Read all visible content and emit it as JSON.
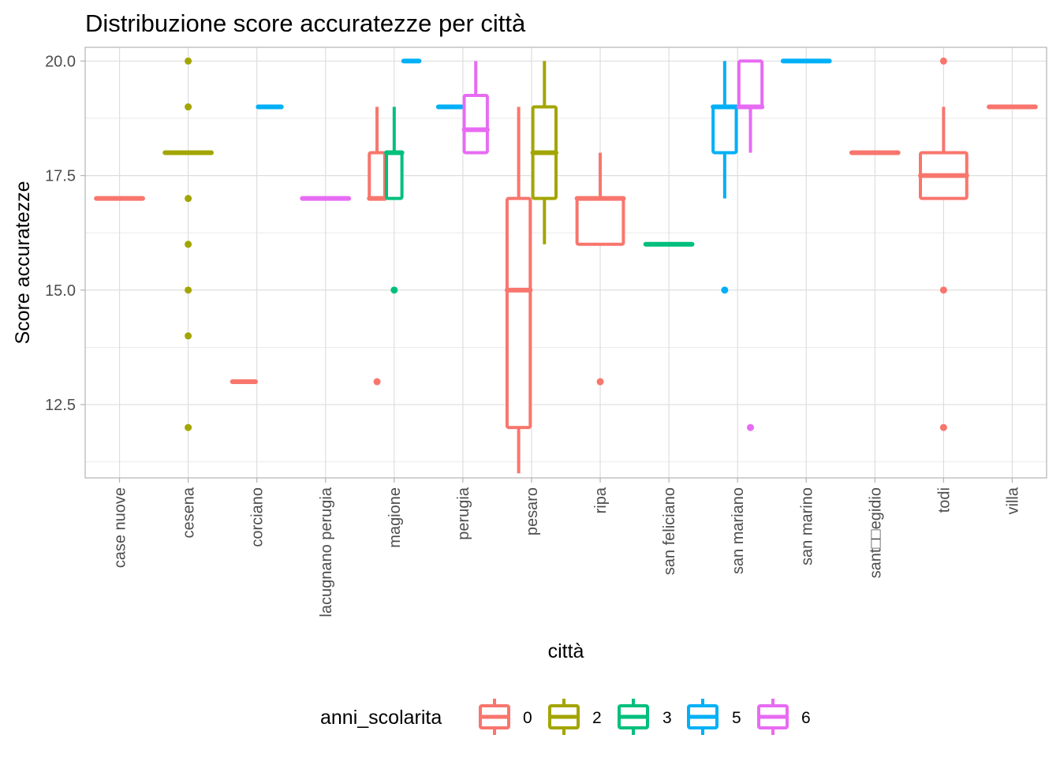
{
  "chart_data": {
    "type": "boxplot",
    "title": "Distribuzione score accuratezze per città",
    "xlabel": "città",
    "ylabel": "Score accuratezze",
    "ylim": [
      10.9,
      20.3
    ],
    "yticks": [
      12.5,
      15.0,
      17.5,
      20.0
    ],
    "ytick_labels": [
      "12.5",
      "15.0",
      "17.5",
      "20.0"
    ],
    "grid": true,
    "legend": {
      "title": "anni_scolarita",
      "position": "bottom",
      "items": [
        {
          "label": "0",
          "color": "#F8766D"
        },
        {
          "label": "2",
          "color": "#A3A500"
        },
        {
          "label": "3",
          "color": "#00BF7D"
        },
        {
          "label": "5",
          "color": "#00B0F6"
        },
        {
          "label": "6",
          "color": "#E76BF3"
        }
      ]
    },
    "categories": [
      "case nuove",
      "cesena",
      "corciano",
      "lacugnano perugia",
      "magione",
      "perugia",
      "pesaro",
      "ripa",
      "san feliciano",
      "san mariano",
      "san marino",
      "sant□□egidio",
      "todi",
      "villa"
    ],
    "boxes": [
      {
        "category": "case nuove",
        "group": "0",
        "groups_in_category": 1,
        "slot": 0,
        "q1": 17,
        "median": 17,
        "q3": 17,
        "whisker_low": 17,
        "whisker_high": 17,
        "outliers": []
      },
      {
        "category": "cesena",
        "group": "2",
        "groups_in_category": 1,
        "slot": 0,
        "q1": 18,
        "median": 18,
        "q3": 18,
        "whisker_low": 18,
        "whisker_high": 18,
        "outliers": [
          20,
          19,
          17,
          16,
          15,
          14,
          12
        ]
      },
      {
        "category": "corciano",
        "group": "0",
        "groups_in_category": 2,
        "slot": 0,
        "q1": 13,
        "median": 13,
        "q3": 13,
        "whisker_low": 13,
        "whisker_high": 13,
        "outliers": []
      },
      {
        "category": "corciano",
        "group": "5",
        "groups_in_category": 2,
        "slot": 1,
        "q1": 19,
        "median": 19,
        "q3": 19,
        "whisker_low": 19,
        "whisker_high": 19,
        "outliers": []
      },
      {
        "category": "lacugnano perugia",
        "group": "6",
        "groups_in_category": 1,
        "slot": 0,
        "q1": 17,
        "median": 17,
        "q3": 17,
        "whisker_low": 17,
        "whisker_high": 17,
        "outliers": []
      },
      {
        "category": "magione",
        "group": "0",
        "groups_in_category": 3,
        "slot": 0,
        "q1": 17,
        "median": 17,
        "q3": 18,
        "whisker_low": 17,
        "whisker_high": 19,
        "outliers": [
          13
        ]
      },
      {
        "category": "magione",
        "group": "3",
        "groups_in_category": 3,
        "slot": 1,
        "q1": 17,
        "median": 18,
        "q3": 18,
        "whisker_low": 17,
        "whisker_high": 19,
        "outliers": [
          15
        ]
      },
      {
        "category": "magione",
        "group": "5",
        "groups_in_category": 3,
        "slot": 2,
        "q1": 20,
        "median": 20,
        "q3": 20,
        "whisker_low": 20,
        "whisker_high": 20,
        "outliers": []
      },
      {
        "category": "perugia",
        "group": "5",
        "groups_in_category": 2,
        "slot": 0,
        "q1": 19,
        "median": 19,
        "q3": 19,
        "whisker_low": 19,
        "whisker_high": 19,
        "outliers": []
      },
      {
        "category": "perugia",
        "group": "6",
        "groups_in_category": 2,
        "slot": 1,
        "q1": 18,
        "median": 18.5,
        "q3": 19.25,
        "whisker_low": 18,
        "whisker_high": 20,
        "outliers": []
      },
      {
        "category": "pesaro",
        "group": "0",
        "groups_in_category": 2,
        "slot": 0,
        "q1": 12,
        "median": 15,
        "q3": 17,
        "whisker_low": 11,
        "whisker_high": 19,
        "outliers": []
      },
      {
        "category": "pesaro",
        "group": "2",
        "groups_in_category": 2,
        "slot": 1,
        "q1": 17,
        "median": 18,
        "q3": 19,
        "whisker_low": 16,
        "whisker_high": 20,
        "outliers": []
      },
      {
        "category": "ripa",
        "group": "0",
        "groups_in_category": 1,
        "slot": 0,
        "q1": 16,
        "median": 17,
        "q3": 17,
        "whisker_low": 16,
        "whisker_high": 18,
        "outliers": [
          13
        ]
      },
      {
        "category": "san feliciano",
        "group": "3",
        "groups_in_category": 1,
        "slot": 0,
        "q1": 16,
        "median": 16,
        "q3": 16,
        "whisker_low": 16,
        "whisker_high": 16,
        "outliers": []
      },
      {
        "category": "san mariano",
        "group": "5",
        "groups_in_category": 2,
        "slot": 0,
        "q1": 18,
        "median": 19,
        "q3": 19,
        "whisker_low": 17,
        "whisker_high": 20,
        "outliers": [
          15
        ]
      },
      {
        "category": "san mariano",
        "group": "6",
        "groups_in_category": 2,
        "slot": 1,
        "q1": 19,
        "median": 19,
        "q3": 20,
        "whisker_low": 18,
        "whisker_high": 20,
        "outliers": [
          12
        ]
      },
      {
        "category": "san marino",
        "group": "5",
        "groups_in_category": 1,
        "slot": 0,
        "q1": 20,
        "median": 20,
        "q3": 20,
        "whisker_low": 20,
        "whisker_high": 20,
        "outliers": []
      },
      {
        "category": "sant□□egidio",
        "group": "0",
        "groups_in_category": 1,
        "slot": 0,
        "q1": 18,
        "median": 18,
        "q3": 18,
        "whisker_low": 18,
        "whisker_high": 18,
        "outliers": []
      },
      {
        "category": "todi",
        "group": "0",
        "groups_in_category": 1,
        "slot": 0,
        "q1": 17,
        "median": 17.5,
        "q3": 18,
        "whisker_low": 17,
        "whisker_high": 19,
        "outliers": [
          20,
          15,
          12
        ]
      },
      {
        "category": "villa",
        "group": "0",
        "groups_in_category": 1,
        "slot": 0,
        "q1": 19,
        "median": 19,
        "q3": 19,
        "whisker_low": 19,
        "whisker_high": 19,
        "outliers": []
      }
    ]
  }
}
